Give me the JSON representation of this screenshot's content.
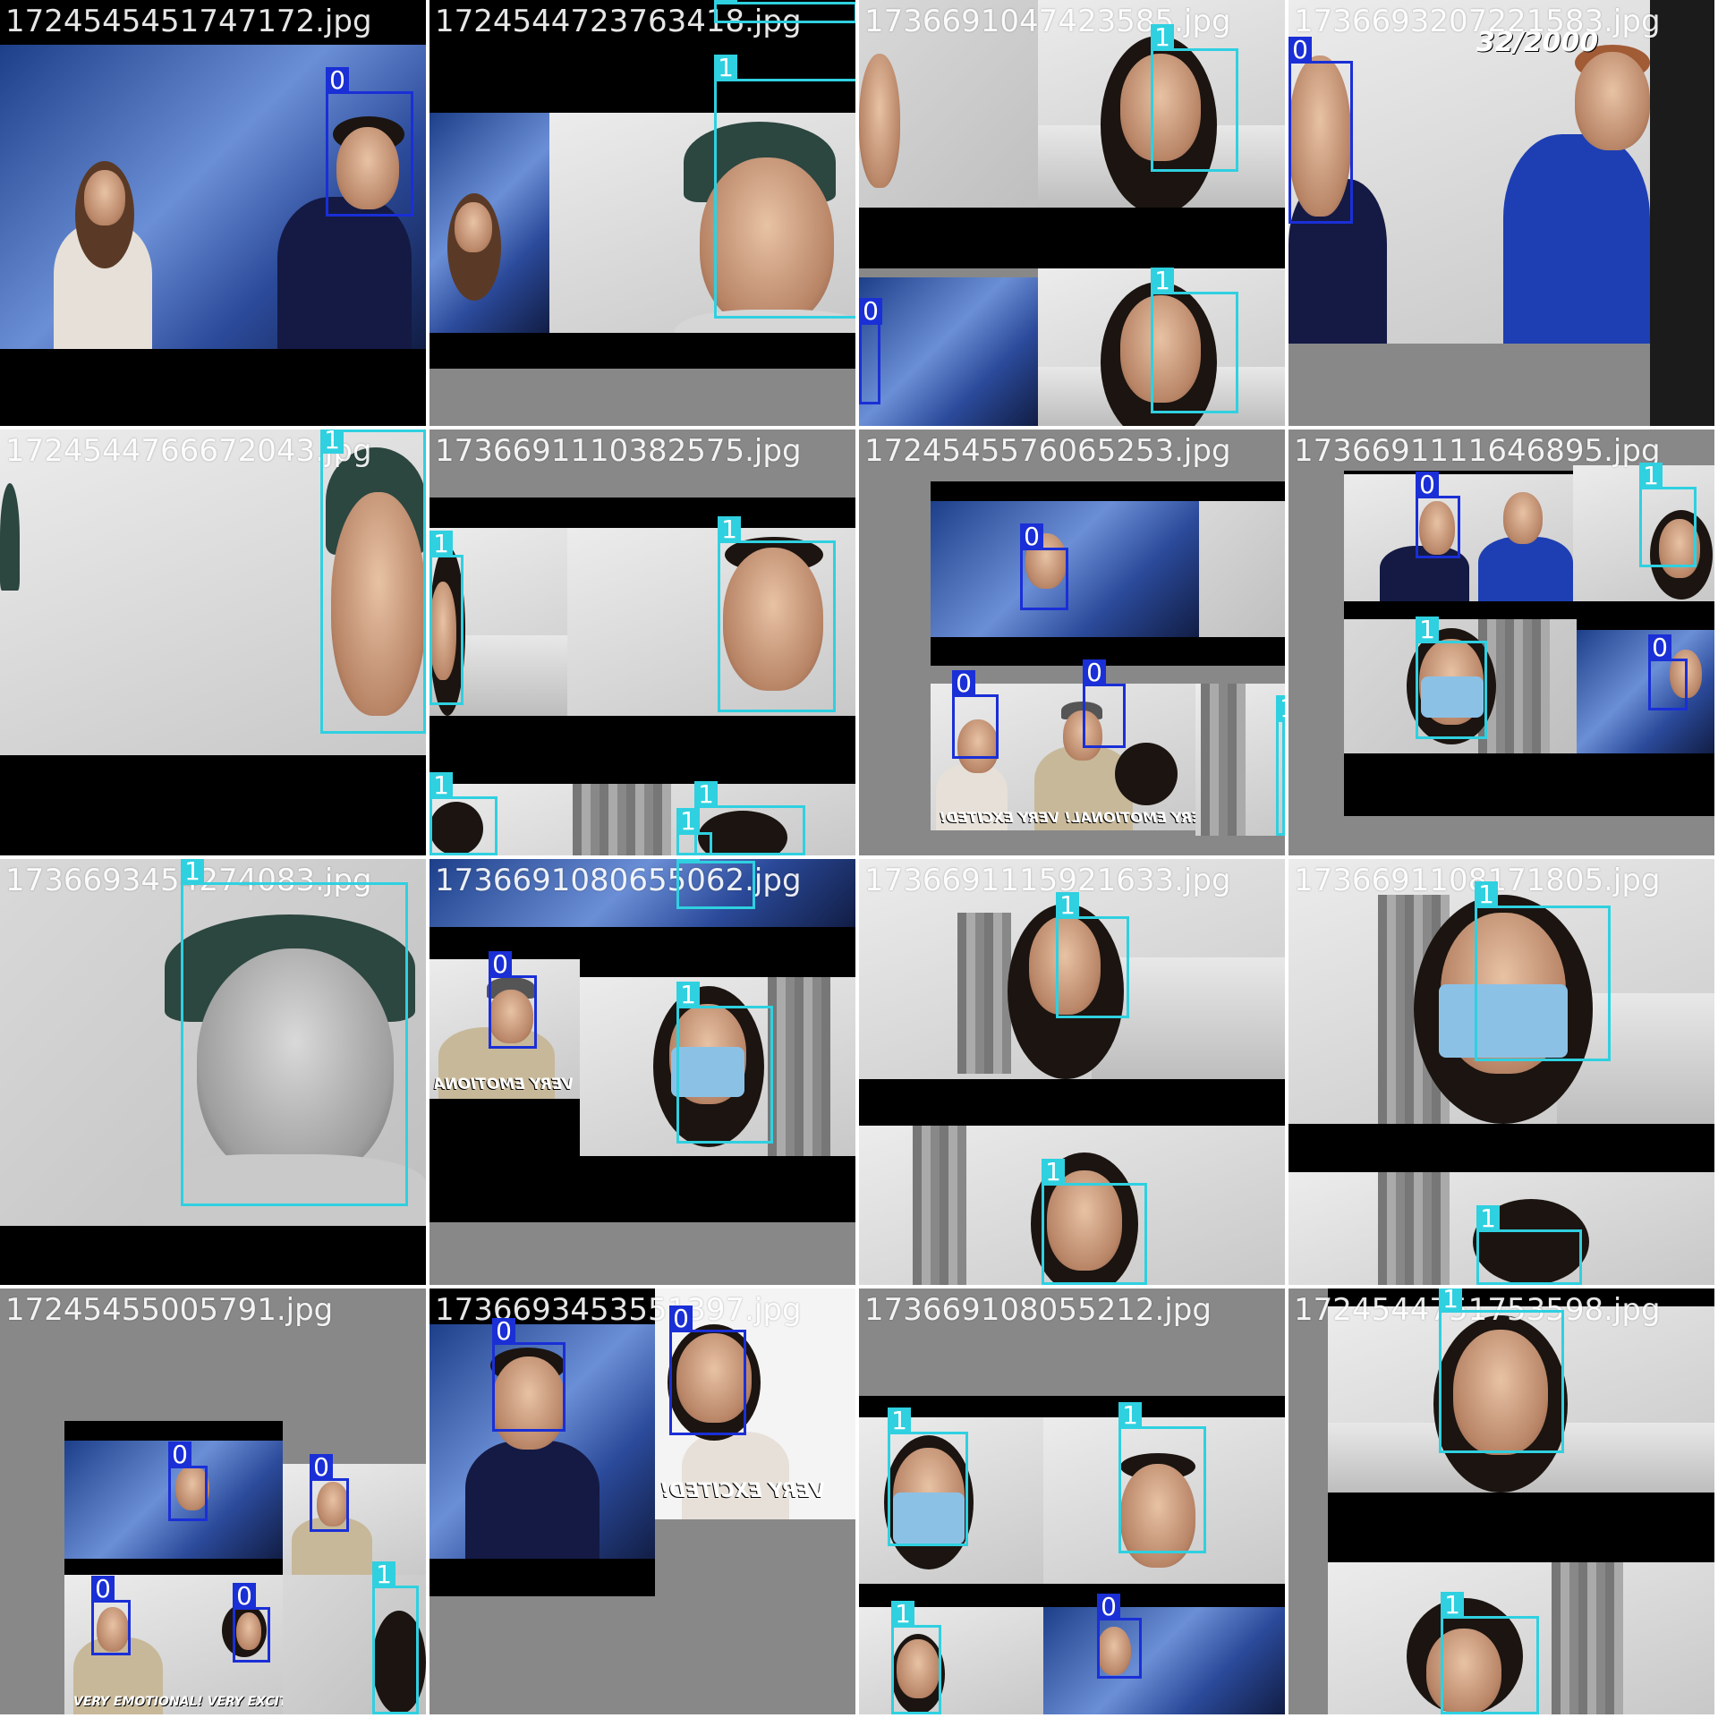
{
  "title": "",
  "colors": {
    "class_0": "#1a2fd6",
    "class_1": "#2fd0e0",
    "filename_text": "#ffffff",
    "padding_gray": "#888888",
    "letterbox_black": "#000000"
  },
  "tiles": [
    {
      "filename": "1724545451747172.jpg",
      "boxes": [
        {
          "label": "0"
        }
      ]
    },
    {
      "filename": "1724544723763418.jpg",
      "boxes": [
        {
          "label": "1"
        },
        {
          "label": "1"
        }
      ]
    },
    {
      "filename": "1736691047423585.jpg",
      "boxes": [
        {
          "label": "1"
        },
        {
          "label": "1"
        },
        {
          "label": "0"
        }
      ]
    },
    {
      "filename": "1736693207221583.jpg",
      "boxes": [
        {
          "label": "0"
        }
      ],
      "overlay_text": "32/2000"
    },
    {
      "filename": "1724544766672043.jpg",
      "boxes": [
        {
          "label": "1"
        }
      ]
    },
    {
      "filename": "1736691110382575.jpg",
      "boxes": [
        {
          "label": "1"
        },
        {
          "label": "1"
        },
        {
          "label": "1"
        },
        {
          "label": "1"
        },
        {
          "label": "1"
        }
      ]
    },
    {
      "filename": "1724545576065253.jpg",
      "boxes": [
        {
          "label": "0"
        },
        {
          "label": "0"
        },
        {
          "label": "0"
        },
        {
          "label": "1"
        }
      ],
      "overlay_text": "VERY EMOTIONAL! VERY EXCITED!"
    },
    {
      "filename": "1736691111646895.jpg",
      "boxes": [
        {
          "label": "0"
        },
        {
          "label": "1"
        },
        {
          "label": "1"
        },
        {
          "label": "0"
        }
      ]
    },
    {
      "filename": "1736693454274083.jpg",
      "boxes": [
        {
          "label": "1"
        }
      ]
    },
    {
      "filename": "1736691080655062.jpg",
      "boxes": [
        {
          "label": "1"
        },
        {
          "label": "0"
        },
        {
          "label": "1"
        }
      ],
      "overlay_text": "VERY EMOTIONA"
    },
    {
      "filename": "1736691115921633.jpg",
      "boxes": [
        {
          "label": "1"
        },
        {
          "label": "1"
        }
      ]
    },
    {
      "filename": "1736691108171805.jpg",
      "boxes": [
        {
          "label": "1"
        },
        {
          "label": "1"
        }
      ]
    },
    {
      "filename": "17245455005791.jpg",
      "boxes": [
        {
          "label": "0"
        },
        {
          "label": "0"
        },
        {
          "label": "0"
        },
        {
          "label": "0"
        },
        {
          "label": "1"
        }
      ],
      "overlay_text": "VERY EMOTIONAL! VERY EXCITED!"
    },
    {
      "filename": "1736693453551397.jpg",
      "boxes": [
        {
          "label": "0"
        },
        {
          "label": "0"
        }
      ],
      "overlay_text": "VERY EXCITED!"
    },
    {
      "filename": "173669108055212.jpg",
      "boxes": [
        {
          "label": "1"
        },
        {
          "label": "1"
        },
        {
          "label": "1"
        },
        {
          "label": "0"
        }
      ]
    },
    {
      "filename": "1724544751753598.jpg",
      "boxes": [
        {
          "label": "1"
        },
        {
          "label": "1"
        }
      ]
    }
  ]
}
